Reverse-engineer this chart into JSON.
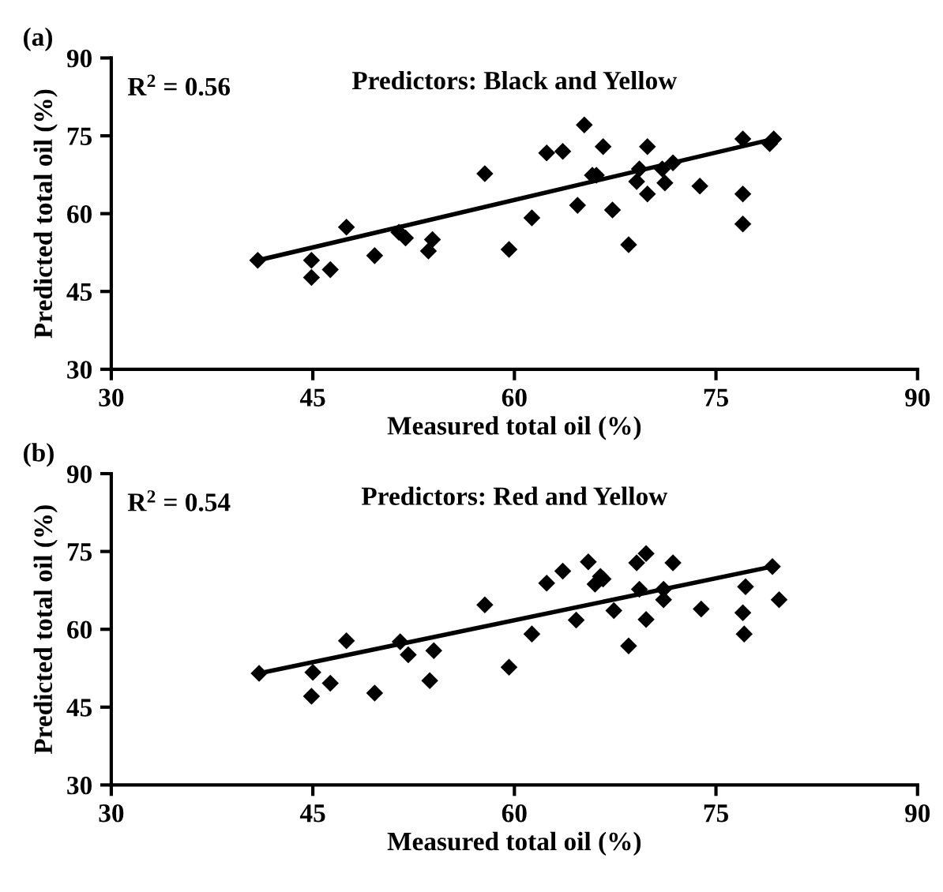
{
  "chart_data": [
    {
      "type": "scatter",
      "title": "Predictors: Black and Yellow",
      "xlabel": "Measured total oil (%)",
      "ylabel": "Predicted total oil (%)",
      "annotations": [
        "(a)",
        "R$^{2}$ = 0.56"
      ],
      "xlim": [
        30,
        90
      ],
      "ylim": [
        30,
        90
      ],
      "xticks": [
        30,
        45,
        60,
        75,
        90
      ],
      "yticks": [
        30,
        45,
        60,
        75,
        90
      ],
      "grid": false,
      "legend": false,
      "series": [
        {
          "marker": "diamond",
          "color": "#000000",
          "x": [
            40.9,
            44.9,
            44.9,
            46.3,
            47.5,
            49.6,
            51.4,
            51.9,
            53.6,
            53.9,
            57.8,
            59.6,
            61.3,
            62.4,
            63.6,
            65.8,
            66.1,
            69.3,
            71.0,
            71.8,
            69.1,
            71.2,
            64.7,
            67.3,
            69.9,
            73.8,
            77.0,
            77.0,
            68.5,
            65.2,
            66.6,
            69.9,
            77.0,
            79.0,
            79.3
          ],
          "values": [
            51,
            51.0,
            47.7,
            49.2,
            57.4,
            51.9,
            56.4,
            55.3,
            52.8,
            55.0,
            67.7,
            53.1,
            59.2,
            71.7,
            72.0,
            67.4,
            67.4,
            68.6,
            68.6,
            69.8,
            66.2,
            65.9,
            61.6,
            60.7,
            63.8,
            65.3,
            63.8,
            58.0,
            54.0,
            77.1,
            72.9,
            72.9,
            74.4,
            73.5,
            74.4
          ]
        },
        {
          "type": "line",
          "marker": "none",
          "color": "#000000",
          "x": [
            40.9,
            79.3
          ],
          "values": [
            51,
            74.4
          ]
        }
      ]
    },
    {
      "type": "scatter",
      "title": "Predictors: Red and Yellow",
      "xlabel": "Measured total oil (%)",
      "ylabel": "Predicted total oil (%)",
      "annotations": [
        "(b)",
        "R$^{2}$ = 0.54"
      ],
      "xlim": [
        30,
        90
      ],
      "ylim": [
        30,
        90
      ],
      "xticks": [
        30,
        45,
        60,
        75,
        90
      ],
      "yticks": [
        30,
        45,
        60,
        75,
        90
      ],
      "grid": false,
      "legend": false,
      "series": [
        {
          "marker": "diamond",
          "color": "#000000",
          "x": [
            41.0,
            45.0,
            44.9,
            46.3,
            47.5,
            49.6,
            51.5,
            52.1,
            53.7,
            54.0,
            57.8,
            59.6,
            61.3,
            62.4,
            63.6,
            65.5,
            69.8,
            69.1,
            71.8,
            66.0,
            66.4,
            66.6,
            69.3,
            71.1,
            71.1,
            64.6,
            67.4,
            69.8,
            73.9,
            77.2,
            77.0,
            77.1,
            79.7,
            79.2,
            68.5
          ],
          "values": [
            51.5,
            51.7,
            47.1,
            49.6,
            57.8,
            47.7,
            57.6,
            55.1,
            50.1,
            55.9,
            64.7,
            52.7,
            59.1,
            68.9,
            71.2,
            73.0,
            74.6,
            72.8,
            72.8,
            68.7,
            70.2,
            69.7,
            67.7,
            67.7,
            65.7,
            61.8,
            63.6,
            61.9,
            63.9,
            68.2,
            63.2,
            59.1,
            65.7,
            72.1,
            56.8
          ]
        },
        {
          "type": "line",
          "marker": "none",
          "color": "#000000",
          "x": [
            41.0,
            79.2
          ],
          "values": [
            51.5,
            72.1
          ]
        }
      ]
    }
  ]
}
